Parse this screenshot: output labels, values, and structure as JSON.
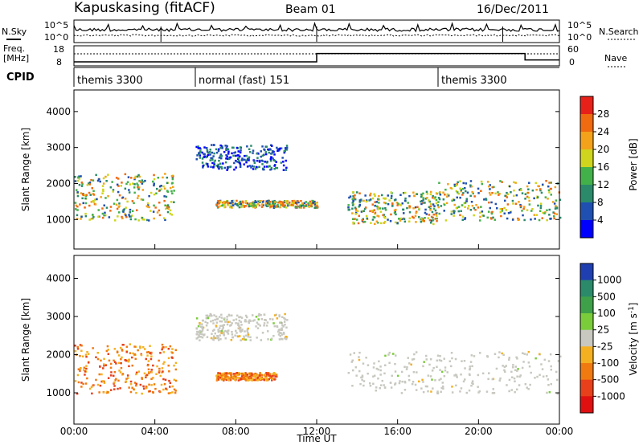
{
  "header": {
    "station": "Kapuskasing (fitACF)",
    "beam": "Beam 01",
    "date": "16/Dec/2011"
  },
  "nsky_panel": {
    "left_label": "N.Sky",
    "right_label": "N.Search",
    "left_ticks": [
      "10^5",
      "10^0"
    ],
    "right_ticks": [
      "10^5",
      "10^0"
    ]
  },
  "freq_panel": {
    "left_label_1": "Freq.",
    "left_label_2": "[MHz]",
    "right_label": "Nave",
    "left_ticks": [
      "18",
      "8"
    ],
    "right_ticks": [
      "60",
      "0"
    ],
    "freq_steps": [
      {
        "from_hour": 0,
        "to_hour": 12,
        "freq": 10.5
      },
      {
        "from_hour": 12,
        "to_hour": 22.3,
        "freq": 17
      },
      {
        "from_hour": 22.3,
        "to_hour": 24,
        "freq": 12
      }
    ]
  },
  "cpid": {
    "label": "CPID",
    "segments": [
      {
        "start_hour": 0,
        "name": "themis 3300"
      },
      {
        "start_hour": 6,
        "name": "normal (fast) 151"
      },
      {
        "start_hour": 18,
        "name": "themis 3300"
      }
    ]
  },
  "chart_data": [
    {
      "type": "heatmap",
      "quantity": "power",
      "ylabel": "Slant Range [km]",
      "ylim": [
        180,
        4600
      ],
      "y_ticks": [
        "1000",
        "2000",
        "3000",
        "4000"
      ],
      "colorbar_label": "Power [dB]",
      "colorbar_ticks": [
        "4",
        "8",
        "12",
        "16",
        "20",
        "24",
        "28"
      ],
      "colorbar_colors": [
        "#0000ff",
        "#1f4fb0",
        "#2a8a6a",
        "#43b14a",
        "#cfd51c",
        "#f3a21a",
        "#f06a10",
        "#e8201a"
      ],
      "echo_regions": [
        {
          "t0": 0,
          "t1": 5,
          "r0": 1000,
          "r1": 2300,
          "level": "medium"
        },
        {
          "t0": 6,
          "t1": 10.5,
          "r0": 2400,
          "r1": 3100,
          "level": "low"
        },
        {
          "t0": 7,
          "t1": 12,
          "r0": 1350,
          "r1": 1550,
          "level": "medium"
        },
        {
          "t0": 13.5,
          "t1": 18,
          "r0": 900,
          "r1": 1800,
          "level": "medium"
        },
        {
          "t0": 18,
          "t1": 24,
          "r0": 1000,
          "r1": 2100,
          "level": "medium"
        }
      ]
    },
    {
      "type": "heatmap",
      "quantity": "velocity",
      "ylabel": "Slant Range [km]",
      "ylim": [
        180,
        4600
      ],
      "y_ticks": [
        "1000",
        "2000",
        "3000",
        "4000"
      ],
      "colorbar_label": "Velocity [m s",
      "colorbar_label_sup": "-1",
      "colorbar_label_end": "]",
      "colorbar_ticks": [
        "1000",
        "500",
        "100",
        "25",
        "-25",
        "-100",
        "-500",
        "-1000"
      ],
      "colorbar_colors": [
        "#1f3fb0",
        "#2a8a6a",
        "#3fa04a",
        "#7acc3a",
        "#c8c8c0",
        "#f4b020",
        "#f07a10",
        "#e8401a",
        "#e01010"
      ],
      "echo_regions": [
        {
          "t0": 0,
          "t1": 5,
          "r0": 1000,
          "r1": 2300,
          "level": "negative"
        },
        {
          "t0": 6,
          "t1": 10.5,
          "r0": 2400,
          "r1": 3100,
          "level": "near-zero"
        },
        {
          "t0": 7,
          "t1": 10,
          "r0": 1350,
          "r1": 1550,
          "level": "negative"
        },
        {
          "t0": 13.5,
          "t1": 24,
          "r0": 1000,
          "r1": 2100,
          "level": "near-zero"
        }
      ]
    }
  ],
  "x_axis": {
    "ticks": [
      "00:00",
      "04:00",
      "08:00",
      "12:00",
      "16:00",
      "20:00",
      "00:00"
    ],
    "label": "Time UT",
    "range_hours": [
      0,
      24
    ]
  }
}
